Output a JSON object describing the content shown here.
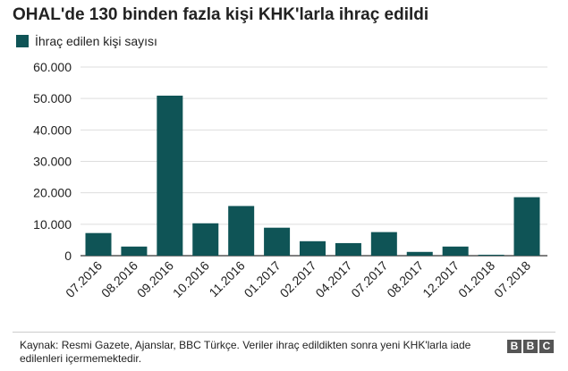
{
  "chart_data": {
    "type": "bar",
    "title": "OHAL'de 130 binden fazla kişi KHK'larla ihraç edildi",
    "xlabel": "",
    "ylabel": "",
    "categories": [
      "07.2016",
      "08.2016",
      "09.2016",
      "10.2016",
      "11.2016",
      "01.2017",
      "02.2017",
      "04.2017",
      "07.2017",
      "08.2017",
      "12.2017",
      "01.2018",
      "07.2018"
    ],
    "series": [
      {
        "name": "İhraç edilen kişi sayısı",
        "values": [
          7200,
          2900,
          50900,
          10300,
          15800,
          8900,
          4600,
          4000,
          7500,
          1200,
          2900,
          300,
          18600
        ]
      }
    ],
    "ylim": [
      0,
      60000
    ],
    "yticks": [
      0,
      10000,
      20000,
      30000,
      40000,
      50000,
      60000
    ],
    "ytick_labels": [
      "0",
      "10.000",
      "20.000",
      "30.000",
      "40.000",
      "50.000",
      "60.000"
    ],
    "grid": true,
    "legend": "top-left",
    "bar_color": "#0f5456"
  },
  "footer": {
    "source": "Kaynak: Resmi Gazete, Ajanslar, BBC Türkçe. Veriler ihraç edildikten sonra yeni KHK'larla iade edilenleri içermemektedir.",
    "logo_letters": [
      "B",
      "B",
      "C"
    ]
  }
}
